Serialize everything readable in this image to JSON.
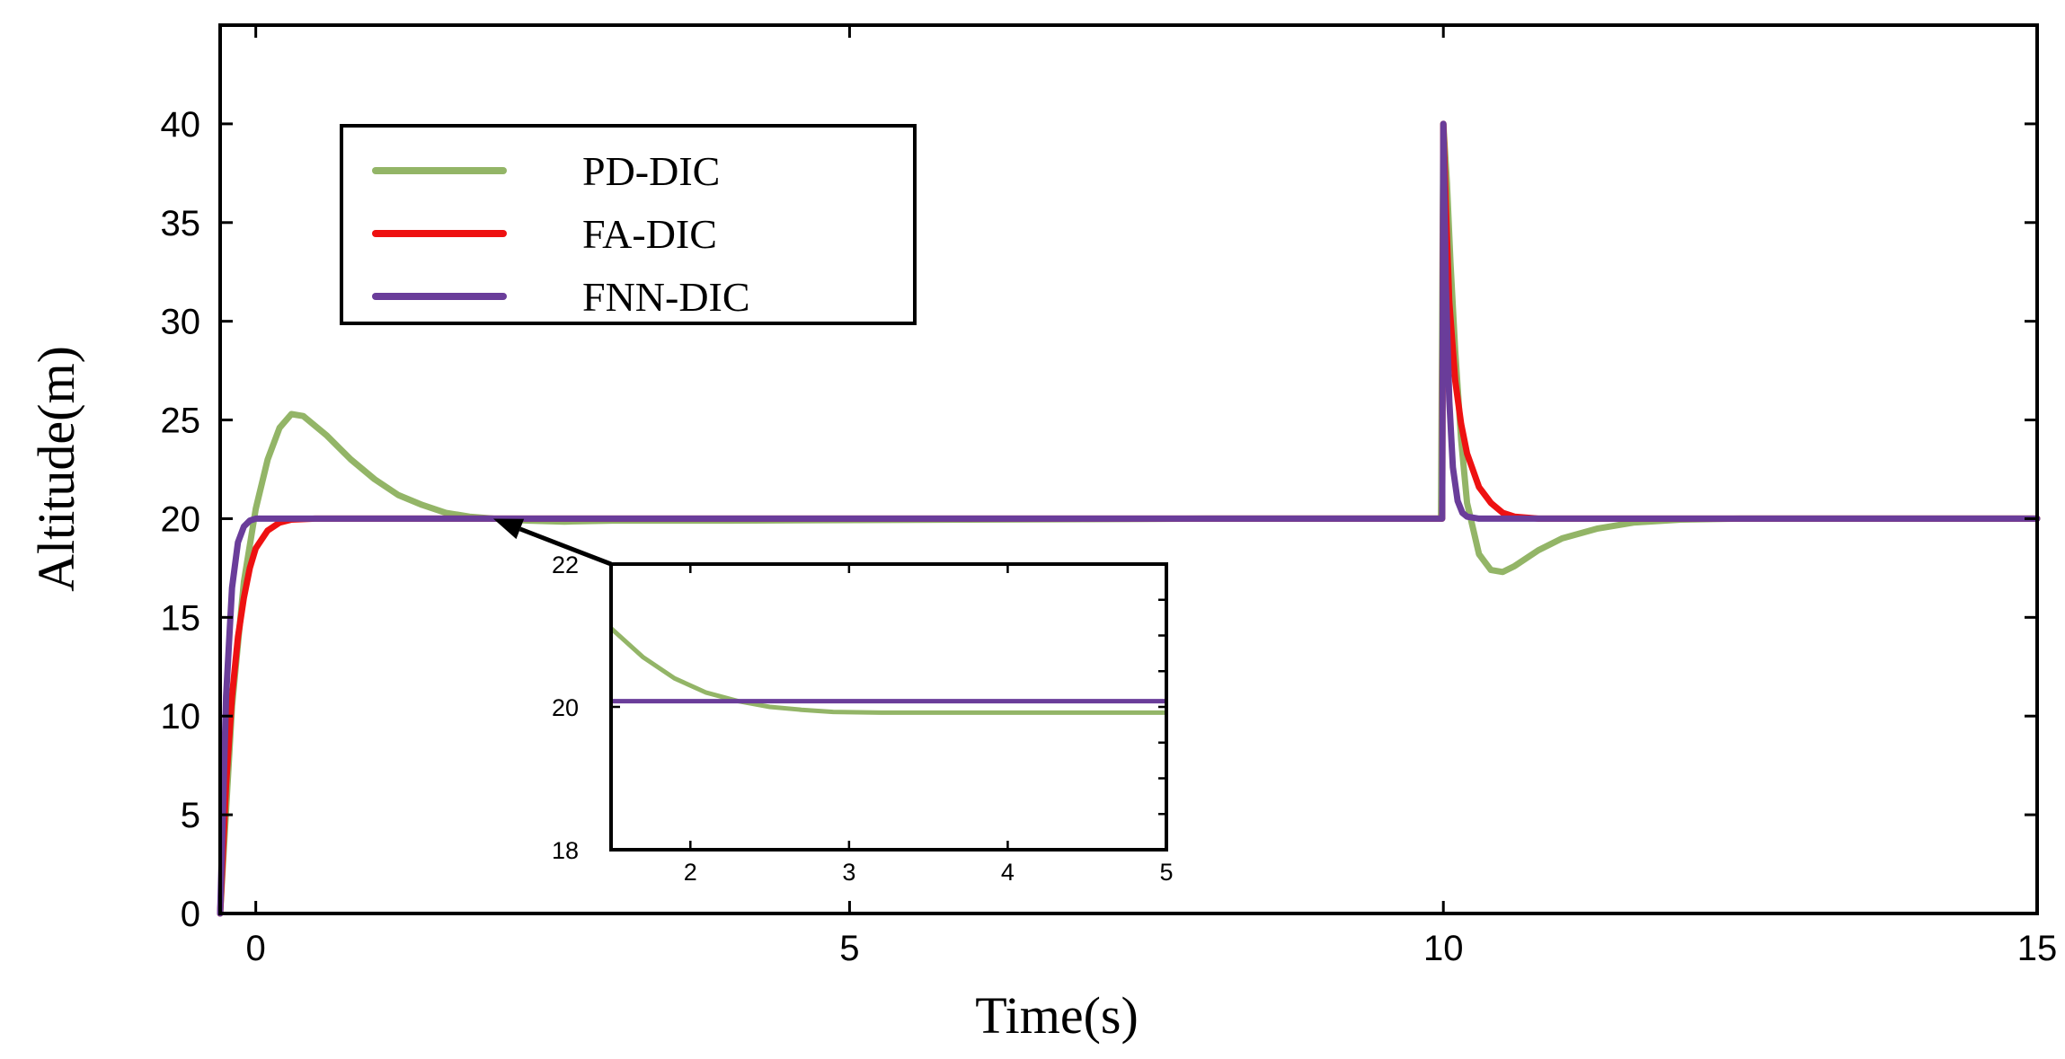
{
  "chart_data": {
    "type": "line",
    "title": "",
    "xlabel": "Time(s)",
    "ylabel": "Altitude(m)",
    "xlim": [
      -0.3,
      15
    ],
    "ylim": [
      0,
      45
    ],
    "xticks": [
      0,
      5,
      10,
      15
    ],
    "yticks": [
      0,
      5,
      10,
      15,
      20,
      25,
      30,
      35,
      40
    ],
    "legend_position": "top-left",
    "series": [
      {
        "name": "PD-DIC",
        "color": "#93b567",
        "x": [
          -0.3,
          -0.2,
          -0.1,
          0.0,
          0.1,
          0.2,
          0.3,
          0.4,
          0.6,
          0.8,
          1.0,
          1.2,
          1.4,
          1.6,
          1.8,
          2.0,
          2.3,
          2.6,
          3.0,
          4.0,
          6.0,
          8.0,
          9.98,
          9.99,
          10.0,
          10.03,
          10.06,
          10.1,
          10.15,
          10.2,
          10.3,
          10.4,
          10.5,
          10.6,
          10.8,
          11.0,
          11.3,
          11.6,
          12.0,
          12.5,
          13.0,
          14.0,
          15.0
        ],
        "y": [
          0,
          10.5,
          16.8,
          20.5,
          23.0,
          24.6,
          25.3,
          25.2,
          24.2,
          23.0,
          22.0,
          21.2,
          20.7,
          20.3,
          20.1,
          20.0,
          19.9,
          19.85,
          19.9,
          19.9,
          19.95,
          20.0,
          20.0,
          30.0,
          40.0,
          37.0,
          33.0,
          28.5,
          24.0,
          20.8,
          18.2,
          17.4,
          17.3,
          17.6,
          18.4,
          19.0,
          19.5,
          19.8,
          19.95,
          20.0,
          20.0,
          20.0,
          20.0
        ]
      },
      {
        "name": "FA-DIC",
        "color": "#ee1111",
        "x": [
          -0.3,
          -0.25,
          -0.2,
          -0.15,
          -0.1,
          -0.05,
          0.0,
          0.1,
          0.2,
          0.3,
          0.5,
          1.0,
          3.0,
          6.0,
          9.99,
          10.0,
          10.02,
          10.05,
          10.1,
          10.15,
          10.2,
          10.3,
          10.4,
          10.5,
          10.6,
          10.8,
          11.0,
          12.0,
          15.0
        ],
        "y": [
          0,
          6.5,
          11.0,
          14.0,
          16.0,
          17.5,
          18.5,
          19.4,
          19.8,
          19.95,
          20.0,
          20.0,
          20.0,
          20.0,
          20.0,
          40.0,
          36.0,
          31.0,
          27.0,
          24.8,
          23.3,
          21.6,
          20.8,
          20.3,
          20.1,
          20.0,
          20.0,
          20.0,
          20.0
        ]
      },
      {
        "name": "FNN-DIC",
        "color": "#6a3d9a",
        "x": [
          -0.3,
          -0.25,
          -0.2,
          -0.15,
          -0.1,
          -0.05,
          0.0,
          0.1,
          0.5,
          1.0,
          3.0,
          6.0,
          9.99,
          10.0,
          10.02,
          10.05,
          10.08,
          10.12,
          10.16,
          10.2,
          10.3,
          10.5,
          11.0,
          12.0,
          15.0
        ],
        "y": [
          0,
          11.0,
          16.5,
          18.8,
          19.6,
          19.9,
          20.0,
          20.0,
          20.0,
          20.0,
          20.0,
          20.0,
          20.0,
          40.0,
          32.0,
          26.0,
          22.6,
          20.9,
          20.3,
          20.1,
          20.0,
          20.0,
          20.0,
          20.0,
          20.0
        ]
      }
    ],
    "inset": {
      "xlim": [
        1.5,
        5
      ],
      "ylim": [
        18,
        22
      ],
      "xticks": [
        2,
        3,
        4,
        5
      ],
      "yticks": [
        18,
        20,
        22
      ],
      "series": [
        {
          "name": "PD-DIC",
          "color": "#93b567",
          "x": [
            1.5,
            1.7,
            1.9,
            2.1,
            2.3,
            2.5,
            2.7,
            2.9,
            3.2,
            3.6,
            4.0,
            4.5,
            5.0
          ],
          "y": [
            21.1,
            20.7,
            20.4,
            20.2,
            20.08,
            20.0,
            19.96,
            19.93,
            19.92,
            19.92,
            19.92,
            19.92,
            19.92
          ]
        },
        {
          "name": "FNN-DIC",
          "color": "#6a3d9a",
          "x": [
            1.5,
            5.0
          ],
          "y": [
            20.08,
            20.08
          ]
        }
      ],
      "arrow_target": {
        "x": 2.0,
        "y": 20.0
      }
    }
  }
}
